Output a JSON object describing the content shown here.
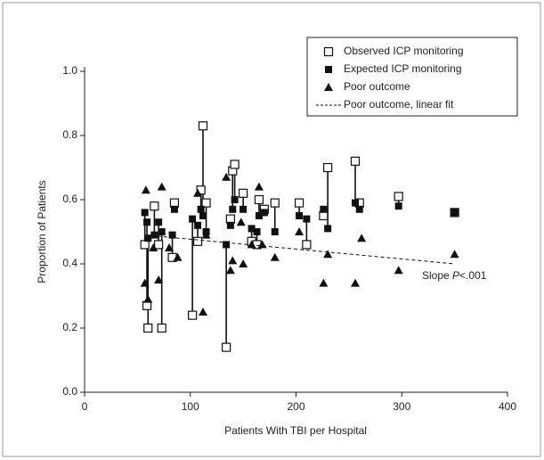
{
  "chart_data": {
    "type": "scatter",
    "x_label": "Patients With TBI per Hospital",
    "y_label": "Proportion of Patients",
    "annotation": [
      "Slope ",
      "P",
      "<.001"
    ],
    "xlim": [
      0,
      400
    ],
    "xticks": [
      0,
      100,
      200,
      300,
      400
    ],
    "ylim": [
      0,
      1
    ],
    "yticks": [
      {
        "value": 0,
        "label": "0.0"
      },
      {
        "value": 0.2,
        "label": "0.2"
      },
      {
        "value": 0.4,
        "label": "0.4"
      },
      {
        "value": 0.6,
        "label": "0.6"
      },
      {
        "value": 0.8,
        "label": "0.8"
      },
      {
        "value": 1,
        "label": "1.0"
      }
    ],
    "series": [
      {
        "name": "Observed ICP monitoring",
        "marker": "open-square",
        "color": "#111",
        "x": [
          57,
          59,
          60,
          66,
          70,
          73,
          83,
          85,
          102,
          107,
          110,
          112,
          115,
          134,
          138,
          140,
          142,
          150,
          158,
          163,
          165,
          170,
          180,
          203,
          210,
          226,
          230,
          256,
          260,
          297,
          350
        ],
        "values": [
          0.46,
          0.27,
          0.2,
          0.58,
          0.46,
          0.2,
          0.42,
          0.59,
          0.24,
          0.47,
          0.63,
          0.83,
          0.59,
          0.14,
          0.54,
          0.69,
          0.71,
          0.62,
          0.47,
          0.46,
          0.6,
          0.57,
          0.59,
          0.59,
          0.46,
          0.55,
          0.7,
          0.72,
          0.59,
          0.61,
          0.56
        ]
      },
      {
        "name": "Expected ICP monitoring",
        "marker": "filled-square",
        "color": "#111",
        "x": [
          57,
          59,
          60,
          66,
          70,
          73,
          83,
          85,
          102,
          107,
          110,
          112,
          115,
          134,
          138,
          140,
          142,
          150,
          158,
          163,
          165,
          170,
          180,
          203,
          210,
          226,
          230,
          256,
          260,
          297,
          350
        ],
        "values": [
          0.56,
          0.53,
          0.48,
          0.49,
          0.53,
          0.5,
          0.49,
          0.57,
          0.54,
          0.52,
          0.57,
          0.55,
          0.5,
          0.46,
          0.52,
          0.57,
          0.6,
          0.57,
          0.51,
          0.5,
          0.55,
          0.56,
          0.5,
          0.55,
          0.54,
          0.57,
          0.51,
          0.59,
          0.57,
          0.58,
          0.56
        ]
      },
      {
        "name": "Poor outcome",
        "marker": "triangle",
        "color": "#111",
        "x": [
          58,
          57,
          60,
          65,
          70,
          73,
          80,
          88,
          107,
          112,
          115,
          134,
          138,
          140,
          148,
          150,
          158,
          165,
          168,
          180,
          203,
          226,
          230,
          256,
          262,
          297,
          350
        ],
        "values": [
          0.63,
          0.34,
          0.29,
          0.45,
          0.35,
          0.64,
          0.45,
          0.42,
          0.62,
          0.25,
          0.49,
          0.67,
          0.38,
          0.41,
          0.53,
          0.4,
          0.46,
          0.64,
          0.46,
          0.42,
          0.5,
          0.34,
          0.43,
          0.34,
          0.48,
          0.38,
          0.43
        ]
      },
      {
        "name": "Poor outcome, linear fit",
        "marker": "dashed-line",
        "color": "#111",
        "x": [
          57,
          350
        ],
        "values": [
          0.49,
          0.4
        ]
      }
    ]
  }
}
